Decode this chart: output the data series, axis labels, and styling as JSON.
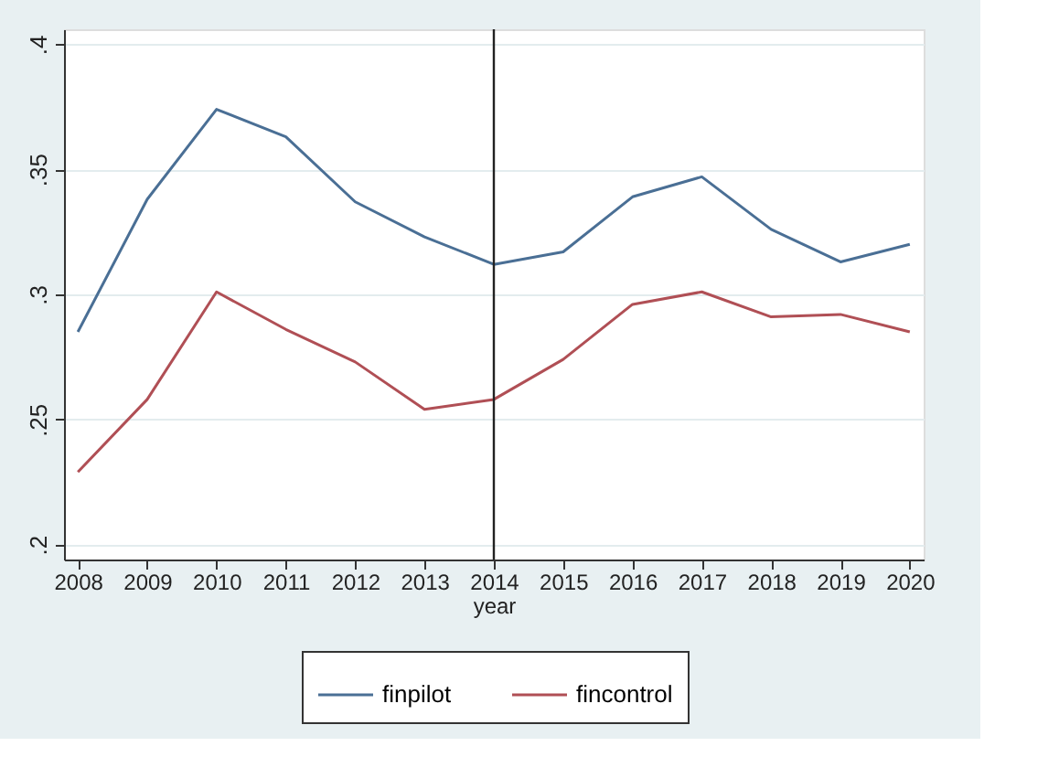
{
  "chart_data": {
    "type": "line",
    "xlabel": "year",
    "x": [
      2008,
      2009,
      2010,
      2011,
      2012,
      2013,
      2014,
      2015,
      2016,
      2017,
      2018,
      2019,
      2020
    ],
    "series": [
      {
        "name": "finpilot",
        "color": "#4a6f95",
        "values": [
          0.285,
          0.338,
          0.374,
          0.363,
          0.337,
          0.323,
          0.312,
          0.317,
          0.339,
          0.347,
          0.326,
          0.313,
          0.32
        ]
      },
      {
        "name": "fincontrol",
        "color": "#b04f55",
        "values": [
          0.229,
          0.258,
          0.301,
          0.286,
          0.273,
          0.254,
          0.258,
          0.274,
          0.296,
          0.301,
          0.291,
          0.292,
          0.285
        ]
      }
    ],
    "xlim": [
      2007.8,
      2020.2
    ],
    "xticks": [
      2008,
      2009,
      2010,
      2011,
      2012,
      2013,
      2014,
      2015,
      2016,
      2017,
      2018,
      2019,
      2020
    ],
    "ylim": [
      0.194,
      0.406
    ],
    "yticks": [
      {
        "value": 0.2,
        "label": ".2"
      },
      {
        "value": 0.25,
        "label": ".25"
      },
      {
        "value": 0.3,
        "label": ".3"
      },
      {
        "value": 0.35,
        "label": ".35"
      },
      {
        "value": 0.4,
        "label": ".4"
      }
    ],
    "ref_lines": [
      {
        "axis": "x",
        "value": 2014,
        "color": "#222222"
      }
    ],
    "grid": "y",
    "legend": "bottom",
    "marker": "none",
    "line_style": "solid"
  }
}
